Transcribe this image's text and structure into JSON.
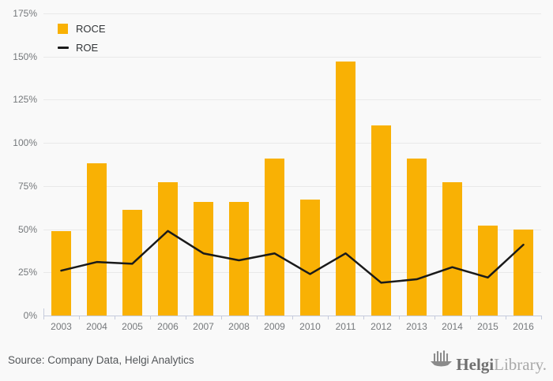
{
  "legend": {
    "roce": "ROCE",
    "roe": "ROE"
  },
  "footer": {
    "source": "Source: Company Data, Helgi Analytics",
    "logo_bold": "Helgi",
    "logo_light": "Library."
  },
  "colors": {
    "bar": "#F9B104",
    "line": "#1A1A1A",
    "grid": "#E9E9E9",
    "axis": "#C5CBDC",
    "bg": "#F9F9F9",
    "axis_text": "#75787B"
  },
  "chart_data": {
    "type": "bar",
    "title": "",
    "xlabel": "",
    "ylabel": "",
    "categories": [
      "2003",
      "2004",
      "2005",
      "2006",
      "2007",
      "2008",
      "2009",
      "2010",
      "2011",
      "2012",
      "2013",
      "2014",
      "2015",
      "2016"
    ],
    "series": [
      {
        "name": "ROCE",
        "type": "bar",
        "color": "#F9B104",
        "values": [
          49,
          88,
          61,
          77,
          66,
          66,
          91,
          67,
          147,
          110,
          91,
          77,
          52,
          50
        ]
      },
      {
        "name": "ROE",
        "type": "line",
        "color": "#1A1A1A",
        "values": [
          26,
          31,
          30,
          49,
          36,
          32,
          36,
          24,
          36,
          19,
          21,
          28,
          22,
          41
        ]
      }
    ],
    "value_unit": "%",
    "ylim": [
      0,
      175
    ],
    "ytick_step": 25,
    "ytick_labels": [
      "0%",
      "25%",
      "50%",
      "75%",
      "100%",
      "125%",
      "150%",
      "175%"
    ],
    "grid": true,
    "legend_position": "top-left"
  }
}
